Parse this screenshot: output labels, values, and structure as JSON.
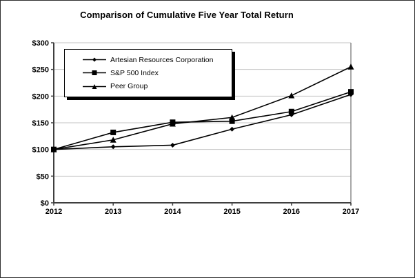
{
  "title": "Comparison of Cumulative Five Year Total Return",
  "chart_data": {
    "type": "line",
    "title": "Comparison of Cumulative Five Year Total Return",
    "x": [
      "2012",
      "2013",
      "2014",
      "2015",
      "2016",
      "2017"
    ],
    "xlabel": "",
    "ylabel": "",
    "ylim": [
      0,
      300
    ],
    "y_tick_step": 50,
    "y_ticks": [
      "$0",
      "$50",
      "$100",
      "$150",
      "$200",
      "$250",
      "$300"
    ],
    "grid": "horizontal",
    "legend_position": "top-left",
    "series": [
      {
        "name": "Artesian Resources Corporation",
        "marker": "diamond",
        "values": [
          100,
          105,
          108,
          138,
          165,
          203
        ]
      },
      {
        "name": "S&P 500 Index",
        "marker": "square",
        "values": [
          100,
          132,
          151,
          153,
          171,
          208
        ]
      },
      {
        "name": "Peer Group",
        "marker": "triangle",
        "values": [
          100,
          118,
          148,
          160,
          201,
          255
        ]
      }
    ],
    "colors": {
      "series": "#000000",
      "grid": "#c3c3c3",
      "axis": "#3f3f3f",
      "right_border": "#8a8a8a",
      "text": "#000000",
      "background": "#ffffff"
    }
  }
}
